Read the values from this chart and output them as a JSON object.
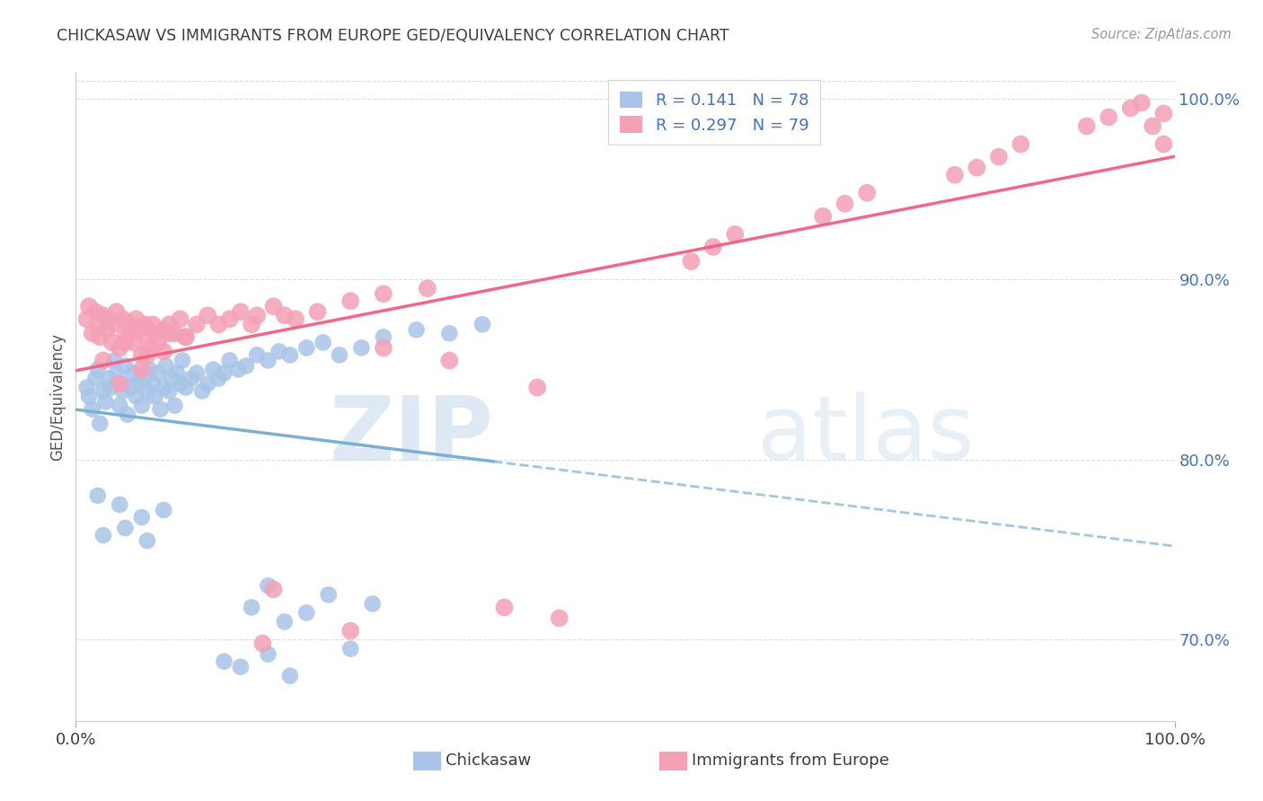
{
  "title": "CHICKASAW VS IMMIGRANTS FROM EUROPE GED/EQUIVALENCY CORRELATION CHART",
  "source": "Source: ZipAtlas.com",
  "ylabel": "GED/Equivalency",
  "watermark_zip": "ZIP",
  "watermark_atlas": "atlas",
  "chickasaw_R": 0.141,
  "chickasaw_N": 78,
  "europe_R": 0.297,
  "europe_N": 79,
  "x_min": 0.0,
  "x_max": 1.0,
  "y_min": 0.655,
  "y_max": 1.015,
  "y_ticks": [
    0.7,
    0.8,
    0.9,
    1.0
  ],
  "y_tick_labels": [
    "70.0%",
    "80.0%",
    "90.0%",
    "100.0%"
  ],
  "x_tick_labels": [
    "0.0%",
    "100.0%"
  ],
  "chickasaw_color": "#a8c4e8",
  "europe_color": "#f4a0b5",
  "chickasaw_line_color": "#7bafd4",
  "europe_line_color": "#f06080",
  "title_color": "#3d3d3d",
  "source_color": "#999999",
  "tick_color_y": "#4472c4",
  "tick_color_x": "#3d3d3d",
  "grid_color": "#dddddd",
  "chickasaw_x": [
    0.01,
    0.012,
    0.015,
    0.018,
    0.02,
    0.022,
    0.025,
    0.027,
    0.03,
    0.032,
    0.035,
    0.037,
    0.04,
    0.042,
    0.043,
    0.045,
    0.047,
    0.05,
    0.052,
    0.055,
    0.057,
    0.06,
    0.062,
    0.065,
    0.067,
    0.07,
    0.072,
    0.075,
    0.077,
    0.08,
    0.082,
    0.085,
    0.087,
    0.09,
    0.092,
    0.095,
    0.097,
    0.1,
    0.105,
    0.11,
    0.115,
    0.12,
    0.125,
    0.13,
    0.135,
    0.14,
    0.148,
    0.155,
    0.165,
    0.175,
    0.185,
    0.195,
    0.21,
    0.225,
    0.24,
    0.26,
    0.28,
    0.31,
    0.34,
    0.37,
    0.02,
    0.04,
    0.06,
    0.08,
    0.025,
    0.045,
    0.065,
    0.175,
    0.23,
    0.27,
    0.21,
    0.19,
    0.16,
    0.25,
    0.135,
    0.195,
    0.15,
    0.175
  ],
  "chickasaw_y": [
    0.84,
    0.835,
    0.828,
    0.845,
    0.85,
    0.82,
    0.838,
    0.832,
    0.845,
    0.84,
    0.855,
    0.848,
    0.83,
    0.842,
    0.838,
    0.852,
    0.825,
    0.84,
    0.848,
    0.835,
    0.843,
    0.83,
    0.845,
    0.838,
    0.85,
    0.842,
    0.835,
    0.848,
    0.828,
    0.84,
    0.852,
    0.838,
    0.845,
    0.83,
    0.848,
    0.842,
    0.855,
    0.84,
    0.845,
    0.848,
    0.838,
    0.842,
    0.85,
    0.845,
    0.848,
    0.855,
    0.85,
    0.852,
    0.858,
    0.855,
    0.86,
    0.858,
    0.862,
    0.865,
    0.858,
    0.862,
    0.868,
    0.872,
    0.87,
    0.875,
    0.78,
    0.775,
    0.768,
    0.772,
    0.758,
    0.762,
    0.755,
    0.73,
    0.725,
    0.72,
    0.715,
    0.71,
    0.718,
    0.695,
    0.688,
    0.68,
    0.685,
    0.692
  ],
  "europe_x": [
    0.01,
    0.012,
    0.015,
    0.018,
    0.02,
    0.022,
    0.025,
    0.028,
    0.03,
    0.033,
    0.035,
    0.037,
    0.04,
    0.043,
    0.045,
    0.048,
    0.05,
    0.053,
    0.055,
    0.058,
    0.06,
    0.063,
    0.065,
    0.068,
    0.07,
    0.073,
    0.075,
    0.08,
    0.085,
    0.09,
    0.095,
    0.1,
    0.11,
    0.12,
    0.13,
    0.14,
    0.15,
    0.165,
    0.18,
    0.2,
    0.22,
    0.25,
    0.28,
    0.32,
    0.025,
    0.045,
    0.065,
    0.085,
    0.04,
    0.06,
    0.08,
    0.1,
    0.16,
    0.19,
    0.56,
    0.58,
    0.6,
    0.68,
    0.7,
    0.72,
    0.8,
    0.82,
    0.84,
    0.86,
    0.92,
    0.94,
    0.96,
    0.97,
    0.98,
    0.99,
    0.99,
    0.34,
    0.28,
    0.42,
    0.18,
    0.39,
    0.44,
    0.17,
    0.25
  ],
  "europe_y": [
    0.878,
    0.885,
    0.87,
    0.882,
    0.875,
    0.868,
    0.88,
    0.872,
    0.878,
    0.865,
    0.875,
    0.882,
    0.862,
    0.878,
    0.868,
    0.875,
    0.87,
    0.865,
    0.878,
    0.872,
    0.858,
    0.875,
    0.868,
    0.862,
    0.875,
    0.87,
    0.865,
    0.872,
    0.875,
    0.87,
    0.878,
    0.868,
    0.875,
    0.88,
    0.875,
    0.878,
    0.882,
    0.88,
    0.885,
    0.878,
    0.882,
    0.888,
    0.892,
    0.895,
    0.855,
    0.865,
    0.858,
    0.87,
    0.842,
    0.85,
    0.86,
    0.868,
    0.875,
    0.88,
    0.91,
    0.918,
    0.925,
    0.935,
    0.942,
    0.948,
    0.958,
    0.962,
    0.968,
    0.975,
    0.985,
    0.99,
    0.995,
    0.998,
    0.985,
    0.992,
    0.975,
    0.855,
    0.862,
    0.84,
    0.728,
    0.718,
    0.712,
    0.698,
    0.705
  ]
}
